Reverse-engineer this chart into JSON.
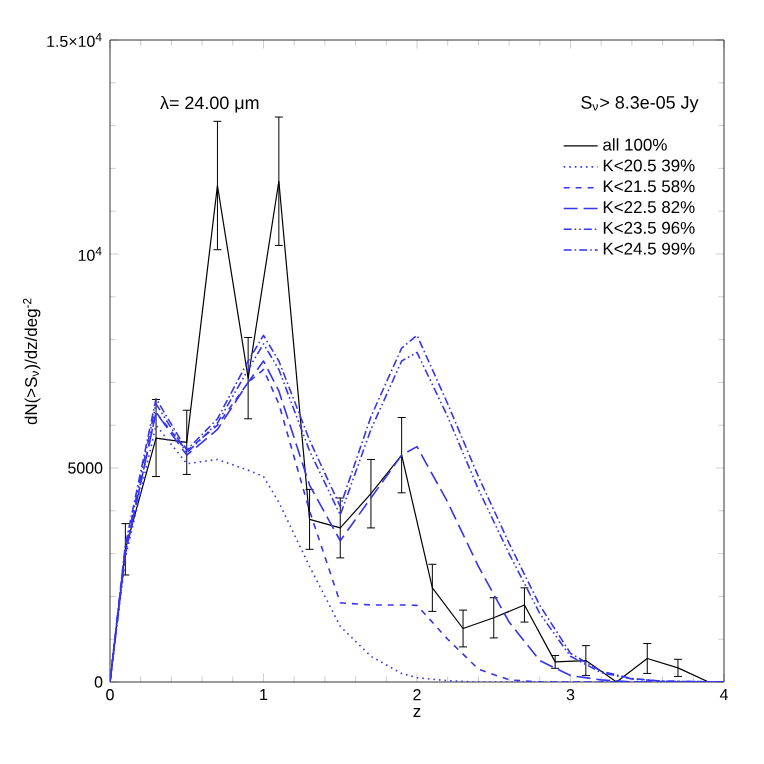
{
  "chart_data": {
    "type": "line",
    "xlabel": "z",
    "ylabel": "dN(>S$_{ν}$)/dz/deg$^{-2}$",
    "annotations": [
      "λ= 24.00 μm",
      "S$_{ν}$> 8.3e-05 Jy"
    ],
    "xlim": [
      0,
      4
    ],
    "ylim": [
      0,
      15000
    ],
    "xticks": [
      0,
      1,
      2,
      3,
      4
    ],
    "yticks": [
      0,
      5000,
      {
        "value": 10000,
        "label": "10$^{4}$"
      },
      {
        "value": 15000,
        "label": "1.5×10$^{4}$"
      }
    ],
    "legend": "top right",
    "grid": false,
    "marker": "none",
    "series": [
      {
        "name": "all  100%",
        "color": "#000000",
        "line_style": "solid",
        "x": [
          0,
          0.1,
          0.3,
          0.5,
          0.7,
          0.9,
          1.1,
          1.3,
          1.5,
          1.7,
          1.9,
          2.1,
          2.3,
          2.5,
          2.7,
          2.9,
          3.1,
          3.3,
          3.5,
          3.7,
          3.9
        ],
        "values": [
          0,
          3100,
          5700,
          5600,
          11600,
          7100,
          11700,
          3800,
          3600,
          4400,
          5300,
          2200,
          1250,
          1500,
          1800,
          470,
          500,
          0,
          550,
          330,
          0
        ],
        "errors": [
          null,
          600,
          900,
          750,
          1500,
          950,
          1500,
          700,
          700,
          800,
          880,
          550,
          430,
          470,
          400,
          150,
          350,
          null,
          350,
          200,
          null
        ]
      },
      {
        "name": "K<20.5   39%",
        "color": "#3535f0",
        "line_style": "dotted",
        "x": [
          0,
          0.1,
          0.3,
          0.5,
          0.7,
          0.9,
          1.0,
          1.1,
          1.3,
          1.5,
          1.7,
          1.9,
          2.0,
          2.2,
          2.4,
          2.6,
          2.8,
          3.0,
          3.2,
          3.4,
          3.6,
          4.0
        ],
        "values": [
          0,
          2900,
          6000,
          5100,
          5200,
          4950,
          4800,
          4200,
          2700,
          1300,
          600,
          200,
          100,
          30,
          0,
          0,
          0,
          0,
          0,
          0,
          0,
          0
        ]
      },
      {
        "name": "K<21.5   58%",
        "color": "#3535f0",
        "line_style": "dashed",
        "x": [
          0,
          0.1,
          0.3,
          0.5,
          0.7,
          0.9,
          1.0,
          1.1,
          1.3,
          1.5,
          1.7,
          1.9,
          2.0,
          2.2,
          2.4,
          2.6,
          2.8,
          3.0,
          3.2,
          3.4,
          3.6,
          4.0
        ],
        "values": [
          0,
          3000,
          6300,
          5400,
          6000,
          7000,
          7300,
          6500,
          4000,
          1850,
          1800,
          1800,
          1790,
          1000,
          300,
          50,
          0,
          0,
          0,
          0,
          0,
          0
        ]
      },
      {
        "name": "K<22.5   82%",
        "color": "#3535f0",
        "line_style": "long dashed",
        "x": [
          0,
          0.1,
          0.3,
          0.5,
          0.7,
          0.9,
          1.0,
          1.1,
          1.3,
          1.5,
          1.7,
          1.9,
          2.0,
          2.2,
          2.4,
          2.6,
          2.8,
          3.0,
          3.2,
          3.4,
          3.6,
          4.0
        ],
        "values": [
          0,
          3000,
          6300,
          5300,
          5900,
          7000,
          7500,
          6800,
          4600,
          3300,
          4300,
          5300,
          5500,
          4200,
          2700,
          1400,
          500,
          150,
          50,
          0,
          0,
          0
        ]
      },
      {
        "name": "K<23.5   96%",
        "color": "#3535f0",
        "line_style": "dash dot dot",
        "x": [
          0,
          0.1,
          0.3,
          0.5,
          0.7,
          0.9,
          1.0,
          1.1,
          1.3,
          1.5,
          1.7,
          1.9,
          2.0,
          2.2,
          2.4,
          2.6,
          2.8,
          3.0,
          3.2,
          3.4,
          3.6,
          4.0
        ],
        "values": [
          0,
          3100,
          6500,
          5350,
          6050,
          7300,
          7900,
          7300,
          5400,
          3900,
          5900,
          7500,
          7700,
          6200,
          4500,
          3000,
          1600,
          600,
          220,
          70,
          20,
          0
        ]
      },
      {
        "name": "K<24.5   99%",
        "color": "#3535f0",
        "line_style": "dash dot",
        "x": [
          0,
          0.1,
          0.3,
          0.5,
          0.7,
          0.9,
          1.0,
          1.1,
          1.3,
          1.5,
          1.7,
          1.9,
          2.0,
          2.2,
          2.4,
          2.6,
          2.8,
          3.0,
          3.2,
          3.4,
          3.6,
          4.0
        ],
        "values": [
          0,
          3200,
          6620,
          5420,
          6150,
          7500,
          8100,
          7500,
          5650,
          4100,
          6200,
          7800,
          8100,
          6500,
          4800,
          3240,
          1790,
          670,
          250,
          80,
          20,
          0
        ]
      }
    ]
  }
}
